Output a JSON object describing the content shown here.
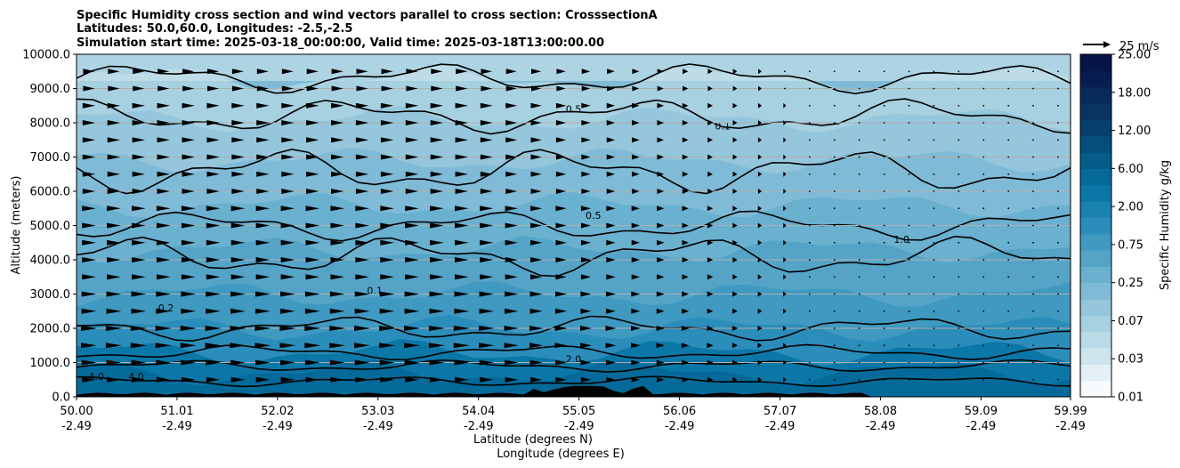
{
  "chart_data": {
    "type": "heatmap",
    "title_lines": [
      "Specific Humidity cross section and wind vectors parallel to cross section: CrosssectionA",
      "Latitudes: 50.0,60.0, Longitudes: -2.5,-2.5",
      "Simulation start time: 2025-03-18_00:00:00, Valid time: 2025-03-18T13:00:00.00"
    ],
    "xlabel_lines": [
      "Latitude (degrees N)",
      "Longitude (degrees E)"
    ],
    "ylabel": "Altitude (meters)",
    "x_ticks": [
      {
        "lat": "50.00",
        "lon": "-2.49"
      },
      {
        "lat": "51.01",
        "lon": "-2.49"
      },
      {
        "lat": "52.02",
        "lon": "-2.49"
      },
      {
        "lat": "53.03",
        "lon": "-2.49"
      },
      {
        "lat": "54.04",
        "lon": "-2.49"
      },
      {
        "lat": "55.05",
        "lon": "-2.49"
      },
      {
        "lat": "56.06",
        "lon": "-2.49"
      },
      {
        "lat": "57.07",
        "lon": "-2.49"
      },
      {
        "lat": "58.08",
        "lon": "-2.49"
      },
      {
        "lat": "59.09",
        "lon": "-2.49"
      },
      {
        "lat": "59.99",
        "lon": "-2.49"
      }
    ],
    "xlim": [
      50.0,
      59.99
    ],
    "y_ticks": [
      "0.0",
      "1000.0",
      "2000.0",
      "3000.0",
      "4000.0",
      "5000.0",
      "6000.0",
      "7000.0",
      "8000.0",
      "9000.0",
      "10000.0"
    ],
    "ylim": [
      0,
      10000
    ],
    "grid": "horizontal",
    "colorbar": {
      "label": "Specific Humidity g/kg",
      "tick_labels": [
        "0.01",
        "0.03",
        "0.07",
        "0.25",
        "0.75",
        "2.00",
        "6.00",
        "12.00",
        "18.00",
        "25.00"
      ],
      "colors": [
        "#f7fbfd",
        "#e3eff4",
        "#cde4ec",
        "#b9dbe7",
        "#a7d0e1",
        "#95c6dc",
        "#7fbbd6",
        "#6ab0cf",
        "#55a4c8",
        "#3f99c1",
        "#2b8dba",
        "#1a82b1",
        "#0b77a7",
        "#056a99",
        "#045c8a",
        "#054d7c",
        "#06406e",
        "#073463",
        "#082a5a",
        "#081d4f",
        "#071446"
      ]
    },
    "wind_key": "25 m/s",
    "contour_labels": [
      "0.1",
      "0.5",
      "0.2",
      "2.0",
      "4.0",
      "1.0"
    ],
    "wind_profile": {
      "heights_m": [
        500,
        1000,
        1500,
        2000,
        2500,
        3000,
        3500,
        4000,
        4500,
        5000,
        5500,
        6000,
        6500,
        7000,
        7500,
        8000,
        8500,
        9000,
        9500
      ],
      "west_speed": [
        13,
        14,
        15,
        15,
        14,
        14,
        13,
        13,
        13,
        13,
        13,
        12,
        12,
        12,
        12,
        12,
        12,
        11,
        11
      ]
    },
    "terrain_color": "#000000"
  }
}
